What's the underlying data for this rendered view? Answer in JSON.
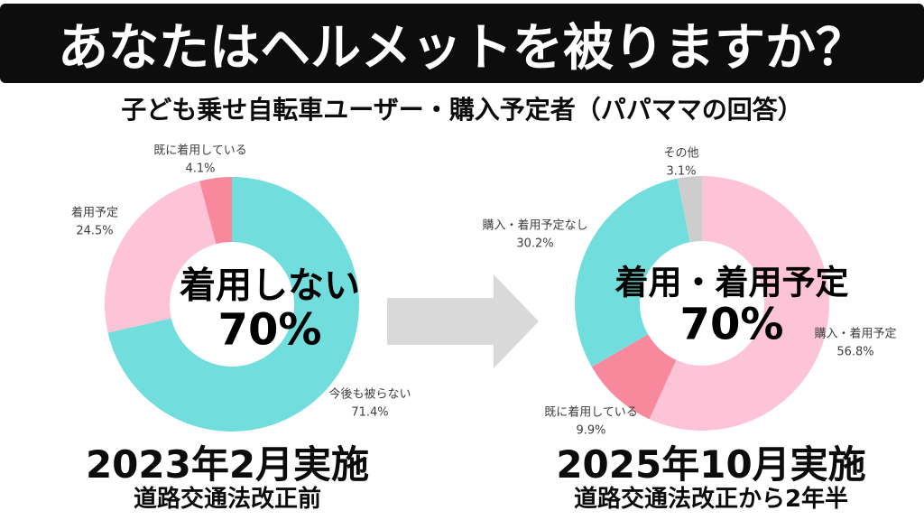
{
  "header": {
    "title": "あなたはヘルメットを被りますか？",
    "subtitle": "子ども乗せ自転車ユーザー・購入予定者（パパママの回答）"
  },
  "colors": {
    "banner_bg": "#0d0d0d",
    "banner_text": "#ffffff",
    "teal": "#71dedd",
    "light_pink": "#fdc4d8",
    "salmon": "#f8899c",
    "gray": "#cdcdcd",
    "label_text": "#3d3d3d"
  },
  "arrow": {
    "shape": "right-arrow",
    "color": "#d9d9d9"
  },
  "chart_data": [
    {
      "type": "pie",
      "variant": "donut",
      "direction": "clockwise",
      "start_angle_deg": 0,
      "legend_position": "outside-labels",
      "caption": "2023年2月実施",
      "subcaption": "道路交通法改正前",
      "center_label": {
        "line1": "着用しない",
        "line2": "70%"
      },
      "segments": [
        {
          "label": "今後も被らない",
          "value": 71.4,
          "pct_label": "71.4%",
          "color": "#71dedd"
        },
        {
          "label": "着用予定",
          "value": 24.5,
          "pct_label": "24.5%",
          "color": "#fdc4d8"
        },
        {
          "label": "既に着用している",
          "value": 4.1,
          "pct_label": "4.1%",
          "color": "#f8899c"
        }
      ]
    },
    {
      "type": "pie",
      "variant": "donut",
      "direction": "clockwise",
      "start_angle_deg": 0,
      "legend_position": "outside-labels",
      "caption": "2025年10月実施",
      "subcaption": "道路交通法改正から2年半",
      "center_label": {
        "line1": "着用・着用予定",
        "line2": "70%"
      },
      "segments": [
        {
          "label": "購入・着用予定",
          "value": 56.8,
          "pct_label": "56.8%",
          "color": "#fdc4d8"
        },
        {
          "label": "既に着用している",
          "value": 9.9,
          "pct_label": "9.9%",
          "color": "#f8899c"
        },
        {
          "label": "購入・着用予定なし",
          "value": 30.2,
          "pct_label": "30.2%",
          "color": "#71dedd"
        },
        {
          "label": "その他",
          "value": 3.1,
          "pct_label": "3.1%",
          "color": "#cdcdcd"
        }
      ]
    }
  ]
}
